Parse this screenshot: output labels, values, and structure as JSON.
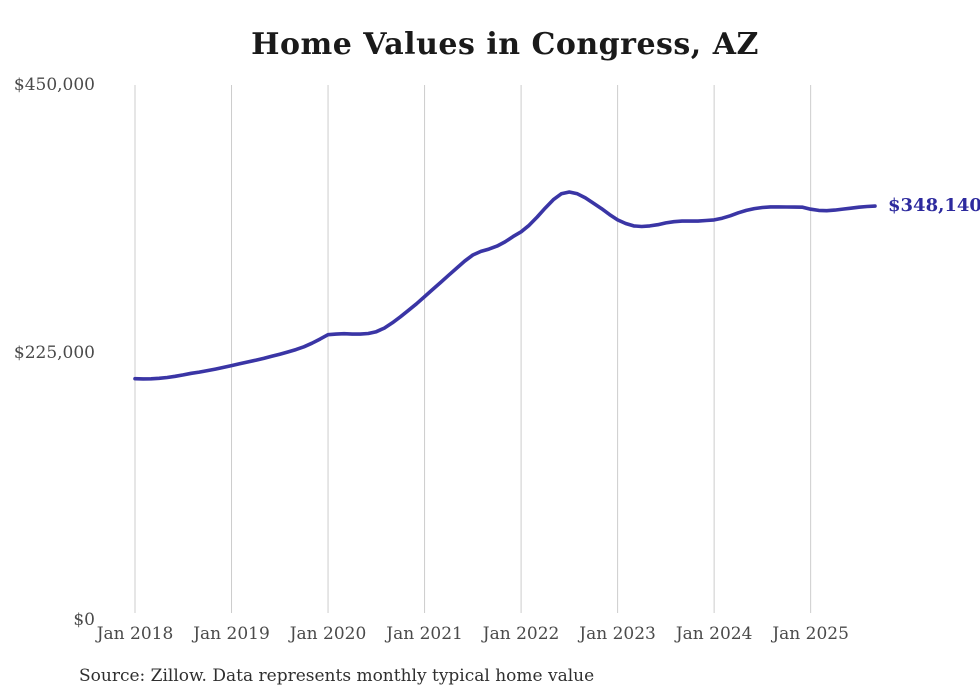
{
  "page": {
    "title": "Home Values in Congress, AZ",
    "source_note": "Source: Zillow. Data represents monthly typical home value"
  },
  "colors": {
    "line": "#3a35a5",
    "end_label": "#2d2a9e",
    "gridline": "#cccccc",
    "title_text": "#1a1a1a",
    "axis_text": "#4a4a4a",
    "source_text": "#2f2f2f",
    "background": "#ffffff"
  },
  "chart_data": {
    "type": "line",
    "title": "Home Values in Congress, AZ",
    "xlabel": "",
    "ylabel": "",
    "ylim": [
      0,
      450000
    ],
    "grid": "vertical-only",
    "legend": false,
    "y_ticks": [
      {
        "value": 0,
        "label": "$0"
      },
      {
        "value": 225000,
        "label": "$225,000"
      },
      {
        "value": 450000,
        "label": "$450,000"
      }
    ],
    "x_ticks": [
      {
        "month_index": 0,
        "label": "Jan 2018"
      },
      {
        "month_index": 12,
        "label": "Jan 2019"
      },
      {
        "month_index": 24,
        "label": "Jan 2020"
      },
      {
        "month_index": 36,
        "label": "Jan 2021"
      },
      {
        "month_index": 48,
        "label": "Jan 2022"
      },
      {
        "month_index": 60,
        "label": "Jan 2023"
      },
      {
        "month_index": 72,
        "label": "Jan 2024"
      },
      {
        "month_index": 84,
        "label": "Jan 2025"
      }
    ],
    "series": [
      {
        "name": "Monthly typical home value",
        "start_month": "2018-01",
        "end_month": "2025-09",
        "end_value": 348140,
        "end_value_label": "$348,140",
        "values": [
          203000,
          202800,
          202900,
          203300,
          204000,
          205000,
          206200,
          207500,
          208500,
          209800,
          211000,
          212500,
          214000,
          215500,
          217000,
          218500,
          220000,
          221800,
          223600,
          225400,
          227400,
          229800,
          232800,
          236300,
          240000,
          240500,
          240800,
          240500,
          240500,
          241000,
          242500,
          245500,
          250000,
          255000,
          260500,
          266000,
          272000,
          278000,
          284000,
          290000,
          296000,
          302000,
          307000,
          310000,
          312000,
          314500,
          318000,
          322500,
          326500,
          332000,
          339000,
          346500,
          353500,
          358500,
          360000,
          358500,
          355000,
          350500,
          346000,
          341000,
          336500,
          333500,
          331500,
          331000,
          331500,
          332500,
          334000,
          335000,
          335500,
          335500,
          335500,
          336000,
          336500,
          338000,
          340000,
          342500,
          344500,
          346000,
          347000,
          347500,
          347500,
          347400,
          347300,
          347200,
          345500,
          344500,
          344300,
          344800,
          345600,
          346400,
          347200,
          347800,
          348140
        ]
      }
    ]
  }
}
